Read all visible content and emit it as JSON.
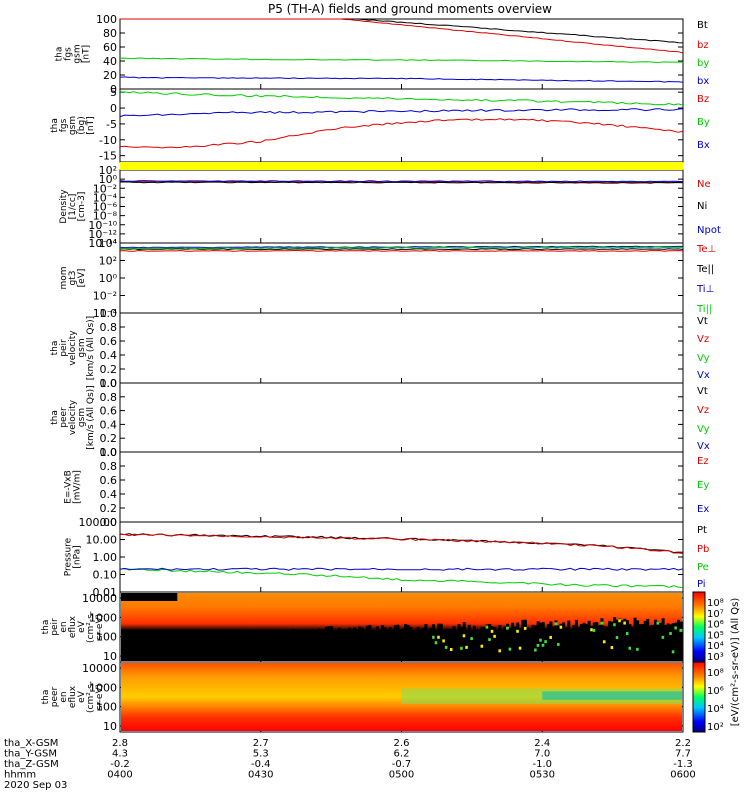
{
  "title": "P5 (TH-A) fields and ground moments overview",
  "colors": {
    "black": "#000000",
    "red": "#e00000",
    "green": "#00cc00",
    "blue": "#0000cc",
    "yellow": "#ffff00",
    "purple": "#7030a0"
  },
  "chart_data": [
    {
      "type": "line",
      "panel": "fgs_gsm",
      "ylabel": [
        "tha",
        "fgs",
        "gsm",
        "[nT]"
      ],
      "ylim": [
        0,
        100
      ],
      "yticks": [
        0,
        20,
        40,
        60,
        80,
        100
      ],
      "series": [
        {
          "name": "Bt",
          "color": "black",
          "x": [
            0,
            0.42,
            1.0
          ],
          "y": [
            125,
            100,
            66
          ]
        },
        {
          "name": "bz",
          "color": "red",
          "x": [
            0,
            0.42,
            1.0
          ],
          "y": [
            122,
            98,
            52
          ]
        },
        {
          "name": "by",
          "color": "green",
          "x": [
            0,
            0.3,
            0.6,
            1.0
          ],
          "y": [
            44,
            42,
            41,
            38
          ]
        },
        {
          "name": "bx",
          "color": "blue",
          "x": [
            0,
            0.05,
            0.5,
            1.0
          ],
          "y": [
            17,
            16,
            15,
            10
          ]
        }
      ]
    },
    {
      "type": "line",
      "panel": "fgs_gsm_components",
      "ylabel": [
        "tha",
        "fgs",
        "gsm",
        "(bg)",
        "[nT]"
      ],
      "ylim": [
        -17,
        6
      ],
      "yticks": [
        5,
        0,
        -5,
        -10,
        -15
      ],
      "series": [
        {
          "name": "Bz",
          "color": "red",
          "x": [
            0,
            0.1,
            0.25,
            0.4,
            0.55,
            0.7,
            0.85,
            1.0
          ],
          "y": [
            -12,
            -12.5,
            -10.5,
            -6,
            -4,
            -3.5,
            -5,
            -7.5
          ]
        },
        {
          "name": "By",
          "color": "green",
          "x": [
            0,
            0.2,
            0.5,
            0.8,
            1.0
          ],
          "y": [
            5,
            4,
            3,
            2,
            1
          ]
        },
        {
          "name": "Bx",
          "color": "blue",
          "x": [
            0,
            0.2,
            0.5,
            0.8,
            1.0
          ],
          "y": [
            -2.5,
            -1.5,
            -1,
            -0.5,
            -0.5
          ]
        }
      ]
    },
    {
      "type": "line",
      "panel": "density",
      "ylabel": [
        "Density",
        "[1/cc]",
        "[cm-3]"
      ],
      "ylim_log": [
        -14,
        2
      ],
      "yticks": [
        "10²",
        "10⁰",
        "10⁻²",
        "10⁻⁴",
        "10⁻⁶",
        "10⁻⁸",
        "10⁻¹⁰",
        "10⁻¹²",
        "10⁻¹⁴"
      ],
      "series": [
        {
          "name": "Ne",
          "color": "red",
          "x": [
            0,
            1.0
          ],
          "y": [
            0.3,
            0.2
          ]
        },
        {
          "name": "Ni",
          "color": "black",
          "x": [
            0,
            1.0
          ],
          "y": [
            0.2,
            0.15
          ]
        },
        {
          "name": "Npot",
          "color": "blue",
          "x": [
            0,
            1.0
          ],
          "y": [
            0.4,
            0.3
          ]
        }
      ]
    },
    {
      "type": "line",
      "panel": "temperature",
      "ylabel": [
        "mom",
        "gt3",
        "[eV]"
      ],
      "ylim_log": [
        -4,
        4
      ],
      "yticks": [
        "10⁴",
        "10²",
        "10⁰",
        "10⁻²",
        "10⁻⁴"
      ],
      "series": [
        {
          "name": "Te⊥",
          "color": "red",
          "x": [
            0,
            1.0
          ],
          "y": [
            3.1,
            3.1
          ]
        },
        {
          "name": "Te||",
          "color": "black",
          "x": [
            0,
            1.0
          ],
          "y": [
            3.3,
            3.3
          ]
        },
        {
          "name": "Ti⊥",
          "color": "blue",
          "x": [
            0,
            1.0
          ],
          "y": [
            3.5,
            3.6
          ]
        },
        {
          "name": "Ti||",
          "color": "green",
          "x": [
            0,
            1.0
          ],
          "y": [
            3.4,
            3.5
          ]
        }
      ]
    },
    {
      "type": "line",
      "panel": "peir_velocity",
      "ylabel": [
        "tha",
        "peir",
        "velocity",
        "gsm",
        "[km/s (All Qs)]"
      ],
      "ylim": [
        0,
        1
      ],
      "yticks": [
        "0.0",
        "0.2",
        "0.4",
        "0.6",
        "0.8",
        "1.0"
      ],
      "series": [
        {
          "name": "Vt",
          "color": "black"
        },
        {
          "name": "Vz",
          "color": "red"
        },
        {
          "name": "Vy",
          "color": "green"
        },
        {
          "name": "Vx",
          "color": "blue"
        }
      ]
    },
    {
      "type": "line",
      "panel": "peer_velocity",
      "ylabel": [
        "tha",
        "peer",
        "velocity",
        "gsm",
        "[km/s (All Qs)]"
      ],
      "ylim": [
        0,
        1
      ],
      "yticks": [
        "0.0",
        "0.2",
        "0.4",
        "0.6",
        "0.8",
        "1.0"
      ],
      "series": [
        {
          "name": "Vt",
          "color": "black"
        },
        {
          "name": "Vz",
          "color": "red"
        },
        {
          "name": "Vy",
          "color": "green"
        },
        {
          "name": "Vx",
          "color": "blue"
        }
      ]
    },
    {
      "type": "line",
      "panel": "efield",
      "ylabel": [
        "E=-VxB",
        "[mV/m]"
      ],
      "ylim": [
        0,
        1
      ],
      "yticks": [
        "0.0",
        "0.2",
        "0.4",
        "0.6",
        "0.8",
        "1.0"
      ],
      "series": [
        {
          "name": "Ez",
          "color": "red"
        },
        {
          "name": "Ey",
          "color": "green"
        },
        {
          "name": "Ex",
          "color": "blue"
        }
      ]
    },
    {
      "type": "line",
      "panel": "pressure",
      "ylabel": [
        "Pressure",
        "[nPa]"
      ],
      "ylim_log": [
        -2,
        2
      ],
      "yticks": [
        "100.00",
        "10.00",
        "1.00",
        "0.10",
        "0.01"
      ],
      "series": [
        {
          "name": "Pt",
          "color": "black",
          "x": [
            0,
            1.0
          ],
          "y": [
            20,
            1.7
          ]
        },
        {
          "name": "Pb",
          "color": "red",
          "x": [
            0,
            1.0
          ],
          "y": [
            19,
            1.6
          ]
        },
        {
          "name": "Pe",
          "color": "green",
          "x": [
            0,
            0.15,
            0.5,
            0.8,
            1.0
          ],
          "y": [
            0.2,
            0.15,
            0.05,
            0.025,
            0.02
          ]
        },
        {
          "name": "Pi",
          "color": "blue",
          "x": [
            0,
            1.0
          ],
          "y": [
            0.2,
            0.2
          ]
        }
      ]
    },
    {
      "type": "heatmap",
      "panel": "peir_en_eflux",
      "ylabel": [
        "tha",
        "peir",
        "en",
        "eflux",
        "eV",
        "(cm²-s-",
        "sr-eV)"
      ],
      "yticks": [
        "10000",
        "1000",
        "100",
        "10"
      ],
      "colorbar_ticks": [
        "10⁸",
        "10⁷",
        "10⁶",
        "10⁵",
        "10⁴",
        "10³"
      ]
    },
    {
      "type": "heatmap",
      "panel": "peer_en_eflux",
      "ylabel": [
        "tha",
        "peer",
        "en",
        "eflux",
        "eV",
        "(cm²-s-",
        "sr-eV)"
      ],
      "yticks": [
        "10000",
        "1000",
        "100",
        "10"
      ],
      "colorbar_ticks": [
        "10⁸",
        "10⁶",
        "10⁴",
        "10²"
      ]
    }
  ],
  "colorbar_label": "[eV/(cm²-s-sr-eV)] (All Qs)",
  "xaxis": {
    "rows": [
      {
        "label": "tha_X-GSM",
        "values": [
          "2.8",
          "2.7",
          "2.6",
          "2.4",
          "2.2"
        ]
      },
      {
        "label": "tha_Y-GSM",
        "values": [
          "4.3",
          "5.3",
          "6.2",
          "7.0",
          "7.7"
        ]
      },
      {
        "label": "tha_Z-GSM",
        "values": [
          "-0.2",
          "-0.4",
          "-0.7",
          "-1.0",
          "-1.3"
        ]
      },
      {
        "label": "hhmm",
        "values": [
          "0400",
          "0430",
          "0500",
          "0530",
          "0600"
        ]
      }
    ],
    "date": "2020 Sep 03"
  }
}
